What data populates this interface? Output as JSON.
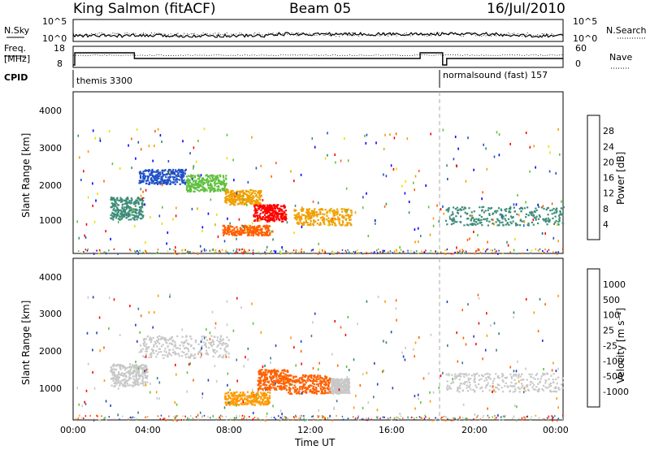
{
  "header": {
    "station": "King Salmon (fitACF)",
    "beam": "Beam 05",
    "date": "16/Jul/2010"
  },
  "top_panels": {
    "nsky_label": "N.Sky",
    "nsearch_label": "N.Search",
    "log_ticks": [
      "10^5",
      "10^0"
    ],
    "freq_label_line1": "Freq.",
    "freq_label_line2": "[MHz]",
    "freq_ticks": [
      "18",
      "8"
    ],
    "nave_label": "Nave",
    "nave_ticks": [
      "60",
      "0"
    ],
    "cpid_label": "CPID",
    "cpid_segments": [
      {
        "label": "themis 3300",
        "start_hour": 0.0,
        "end_hour": 18.1
      },
      {
        "label": "normalsound (fast) 157",
        "start_hour": 18.1,
        "end_hour": 24.0
      }
    ]
  },
  "xaxis": {
    "label": "Time UT",
    "ticks": [
      "00:00",
      "04:00",
      "08:00",
      "12:00",
      "16:00",
      "20:00",
      "00:00"
    ],
    "tick_hours": [
      0,
      4,
      8,
      12,
      16,
      20,
      24
    ]
  },
  "chart_data": [
    {
      "type": "heatmap",
      "name": "power",
      "ylabel": "Slant Range [km]",
      "yticks": [
        1000,
        2000,
        3000,
        4000
      ],
      "ylim": [
        180,
        4500
      ],
      "xlim_hours": [
        0,
        24
      ],
      "colorbar_label": "Power [dB]",
      "colorbar_ticks": [
        "28",
        "24",
        "20",
        "16",
        "12",
        "8",
        "4"
      ],
      "colorbar_colors": [
        "#0000ff",
        "#2050c8",
        "#3c8c78",
        "#60c040",
        "#e8e000",
        "#f0a000",
        "#ff6000",
        "#ff0000"
      ],
      "scatter_groups": [
        {
          "t0": 1.8,
          "t1": 3.4,
          "r0": 1100,
          "r1": 1700,
          "color": "#3c8c78"
        },
        {
          "t0": 3.2,
          "t1": 5.5,
          "r0": 2050,
          "r1": 2450,
          "color": "#2050c8"
        },
        {
          "t0": 5.5,
          "t1": 7.5,
          "r0": 1850,
          "r1": 2300,
          "color": "#60c040"
        },
        {
          "t0": 7.4,
          "t1": 9.2,
          "r0": 1500,
          "r1": 1900,
          "color": "#f0a000"
        },
        {
          "t0": 8.8,
          "t1": 10.4,
          "r0": 1050,
          "r1": 1500,
          "color": "#ff0000"
        },
        {
          "t0": 7.3,
          "t1": 9.6,
          "r0": 680,
          "r1": 950,
          "color": "#ff6000"
        },
        {
          "t0": 10.8,
          "t1": 13.6,
          "r0": 950,
          "r1": 1400,
          "color": "#f0a000"
        },
        {
          "t0": 18.2,
          "t1": 24.0,
          "r0": 950,
          "r1": 1450,
          "color": "#3c8c78"
        }
      ]
    },
    {
      "type": "heatmap",
      "name": "velocity",
      "ylabel": "Slant Range [km]",
      "yticks": [
        1000,
        2000,
        3000,
        4000
      ],
      "ylim": [
        180,
        4500
      ],
      "xlim_hours": [
        0,
        24
      ],
      "colorbar_label": "Velocity [m s⁻¹]",
      "colorbar_ticks": [
        "1000",
        "500",
        "100",
        "25",
        "-25",
        "-100",
        "-500",
        "-1000"
      ],
      "colorbar_colors": [
        "#1f3fbf",
        "#3c7c8c",
        "#60c040",
        "#c8c8c8",
        "#c8c8c8",
        "#ff9a00",
        "#ff6000",
        "#ff0000"
      ],
      "scatter_groups": [
        {
          "t0": 1.8,
          "t1": 3.6,
          "r0": 1100,
          "r1": 1700,
          "color": "#c8c8c8"
        },
        {
          "t0": 3.2,
          "t1": 7.6,
          "r0": 1850,
          "r1": 2450,
          "color": "#c8c8c8"
        },
        {
          "t0": 7.4,
          "t1": 9.6,
          "r0": 600,
          "r1": 950,
          "color": "#ff9a00"
        },
        {
          "t0": 9.0,
          "t1": 10.5,
          "r0": 1000,
          "r1": 1550,
          "color": "#ff6000"
        },
        {
          "t0": 10.5,
          "t1": 12.6,
          "r0": 900,
          "r1": 1400,
          "color": "#ff6000"
        },
        {
          "t0": 12.6,
          "t1": 13.5,
          "r0": 900,
          "r1": 1300,
          "color": "#c8c8c8"
        },
        {
          "t0": 18.2,
          "t1": 24.0,
          "r0": 950,
          "r1": 1450,
          "color": "#c8c8c8"
        }
      ]
    }
  ]
}
